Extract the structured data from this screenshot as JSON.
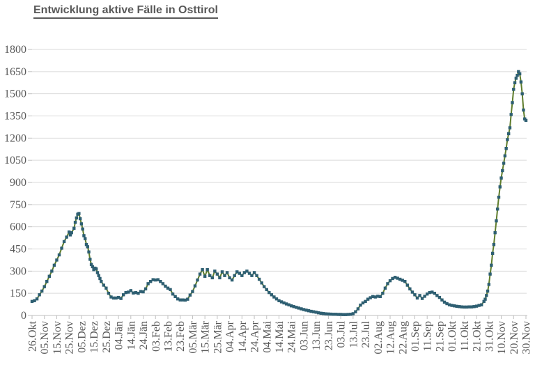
{
  "title": "Entwicklung aktive Fälle in Osttirol",
  "colors": {
    "line": "#5f7d2c",
    "marker": "#2e5f72",
    "grid": "#d9d9d9",
    "axis": "#bfbfbf",
    "tick_text": "#595959",
    "title_text": "#595959",
    "background": "#ffffff"
  },
  "chart_data": {
    "type": "line",
    "title": "Entwicklung aktive Fälle in Osttirol",
    "xlabel": "",
    "ylabel": "",
    "grid": "horizontal",
    "legend": "none",
    "ylim": [
      0,
      1800
    ],
    "y_tick_step": 150,
    "y_tick_labels": [
      "0",
      "150",
      "300",
      "450",
      "600",
      "750",
      "900",
      "1050",
      "1200",
      "1350",
      "1500",
      "1650",
      "1800"
    ],
    "x_range_days": [
      0,
      400
    ],
    "x_tick_interval_days": 10,
    "x_tick_labels": [
      "26.Okt",
      "05.Nov",
      "15.Nov",
      "25.Nov",
      "05.Dez",
      "15.Dez",
      "25.Dez",
      "04.Jän",
      "14.Jän",
      "24.Jän",
      "03.Feb",
      "13.Feb",
      "23.Feb",
      "05.Mär",
      "15.Mär",
      "25.Mär",
      "04.Apr",
      "14.Apr",
      "24.Apr",
      "04.Mai",
      "14.Mai",
      "24.Mai",
      "03.Jun",
      "13.Jun",
      "23.Jun",
      "03.Jul",
      "13.Jul",
      "23.Jul",
      "02.Aug",
      "12.Aug",
      "22.Aug",
      "01.Sep",
      "11.Sep",
      "21.Sep",
      "01.Okt",
      "11.Okt",
      "21.Okt",
      "31.Okt",
      "10.Nov",
      "20.Nov",
      "30.Nov"
    ],
    "series": [
      {
        "name": "aktive Fälle",
        "marker": "square",
        "points": [
          [
            0,
            95
          ],
          [
            2,
            100
          ],
          [
            4,
            112
          ],
          [
            6,
            140
          ],
          [
            8,
            165
          ],
          [
            10,
            195
          ],
          [
            12,
            230
          ],
          [
            14,
            265
          ],
          [
            16,
            300
          ],
          [
            18,
            340
          ],
          [
            20,
            375
          ],
          [
            22,
            410
          ],
          [
            24,
            455
          ],
          [
            26,
            500
          ],
          [
            28,
            530
          ],
          [
            30,
            565
          ],
          [
            31,
            545
          ],
          [
            32,
            560
          ],
          [
            34,
            590
          ],
          [
            35,
            630
          ],
          [
            36,
            660
          ],
          [
            37,
            685
          ],
          [
            38,
            690
          ],
          [
            39,
            655
          ],
          [
            40,
            620
          ],
          [
            41,
            585
          ],
          [
            42,
            540
          ],
          [
            43,
            520
          ],
          [
            44,
            480
          ],
          [
            45,
            465
          ],
          [
            46,
            430
          ],
          [
            47,
            380
          ],
          [
            48,
            345
          ],
          [
            49,
            330
          ],
          [
            50,
            310
          ],
          [
            51,
            320
          ],
          [
            52,
            315
          ],
          [
            53,
            290
          ],
          [
            54,
            270
          ],
          [
            55,
            250
          ],
          [
            56,
            230
          ],
          [
            58,
            205
          ],
          [
            60,
            185
          ],
          [
            62,
            150
          ],
          [
            64,
            125
          ],
          [
            66,
            118
          ],
          [
            68,
            118
          ],
          [
            70,
            122
          ],
          [
            72,
            115
          ],
          [
            74,
            140
          ],
          [
            76,
            155
          ],
          [
            78,
            158
          ],
          [
            80,
            168
          ],
          [
            82,
            152
          ],
          [
            84,
            155
          ],
          [
            86,
            150
          ],
          [
            88,
            162
          ],
          [
            90,
            160
          ],
          [
            92,
            180
          ],
          [
            94,
            215
          ],
          [
            96,
            230
          ],
          [
            98,
            242
          ],
          [
            100,
            240
          ],
          [
            102,
            242
          ],
          [
            104,
            230
          ],
          [
            106,
            215
          ],
          [
            108,
            198
          ],
          [
            110,
            185
          ],
          [
            112,
            175
          ],
          [
            114,
            145
          ],
          [
            116,
            128
          ],
          [
            118,
            112
          ],
          [
            120,
            105
          ],
          [
            122,
            105
          ],
          [
            124,
            104
          ],
          [
            126,
            110
          ],
          [
            128,
            138
          ],
          [
            130,
            162
          ],
          [
            132,
            200
          ],
          [
            134,
            240
          ],
          [
            136,
            280
          ],
          [
            138,
            310
          ],
          [
            140,
            265
          ],
          [
            142,
            310
          ],
          [
            144,
            270
          ],
          [
            146,
            255
          ],
          [
            148,
            300
          ],
          [
            150,
            280
          ],
          [
            152,
            255
          ],
          [
            154,
            295
          ],
          [
            156,
            270
          ],
          [
            158,
            290
          ],
          [
            160,
            255
          ],
          [
            162,
            240
          ],
          [
            164,
            270
          ],
          [
            166,
            295
          ],
          [
            168,
            285
          ],
          [
            170,
            270
          ],
          [
            172,
            290
          ],
          [
            174,
            300
          ],
          [
            176,
            285
          ],
          [
            178,
            270
          ],
          [
            180,
            290
          ],
          [
            182,
            270
          ],
          [
            184,
            245
          ],
          [
            186,
            220
          ],
          [
            188,
            195
          ],
          [
            190,
            175
          ],
          [
            192,
            155
          ],
          [
            194,
            140
          ],
          [
            196,
            125
          ],
          [
            198,
            112
          ],
          [
            200,
            100
          ],
          [
            202,
            92
          ],
          [
            204,
            85
          ],
          [
            206,
            78
          ],
          [
            208,
            72
          ],
          [
            210,
            65
          ],
          [
            212,
            60
          ],
          [
            214,
            55
          ],
          [
            216,
            50
          ],
          [
            218,
            45
          ],
          [
            220,
            40
          ],
          [
            222,
            36
          ],
          [
            224,
            32
          ],
          [
            226,
            28
          ],
          [
            228,
            25
          ],
          [
            230,
            22
          ],
          [
            232,
            18
          ],
          [
            234,
            15
          ],
          [
            236,
            13
          ],
          [
            238,
            11
          ],
          [
            240,
            10
          ],
          [
            242,
            9
          ],
          [
            244,
            8
          ],
          [
            246,
            8
          ],
          [
            248,
            7
          ],
          [
            250,
            7
          ],
          [
            252,
            6
          ],
          [
            254,
            6
          ],
          [
            256,
            7
          ],
          [
            258,
            8
          ],
          [
            260,
            12
          ],
          [
            262,
            25
          ],
          [
            264,
            45
          ],
          [
            266,
            70
          ],
          [
            268,
            85
          ],
          [
            270,
            95
          ],
          [
            272,
            110
          ],
          [
            274,
            120
          ],
          [
            276,
            128
          ],
          [
            278,
            125
          ],
          [
            280,
            130
          ],
          [
            282,
            128
          ],
          [
            284,
            150
          ],
          [
            286,
            185
          ],
          [
            288,
            215
          ],
          [
            290,
            235
          ],
          [
            292,
            250
          ],
          [
            294,
            258
          ],
          [
            296,
            252
          ],
          [
            298,
            245
          ],
          [
            300,
            238
          ],
          [
            302,
            230
          ],
          [
            304,
            205
          ],
          [
            306,
            180
          ],
          [
            308,
            158
          ],
          [
            310,
            140
          ],
          [
            312,
            118
          ],
          [
            314,
            135
          ],
          [
            316,
            115
          ],
          [
            318,
            130
          ],
          [
            320,
            145
          ],
          [
            322,
            155
          ],
          [
            324,
            158
          ],
          [
            326,
            150
          ],
          [
            328,
            135
          ],
          [
            330,
            122
          ],
          [
            332,
            105
          ],
          [
            334,
            90
          ],
          [
            336,
            80
          ],
          [
            338,
            72
          ],
          [
            340,
            68
          ],
          [
            342,
            65
          ],
          [
            344,
            62
          ],
          [
            346,
            60
          ],
          [
            348,
            58
          ],
          [
            350,
            57
          ],
          [
            352,
            57
          ],
          [
            354,
            58
          ],
          [
            356,
            58
          ],
          [
            358,
            60
          ],
          [
            360,
            63
          ],
          [
            362,
            68
          ],
          [
            364,
            72
          ],
          [
            366,
            95
          ],
          [
            367,
            110
          ],
          [
            368,
            135
          ],
          [
            369,
            165
          ],
          [
            370,
            210
          ],
          [
            371,
            280
          ],
          [
            372,
            340
          ],
          [
            373,
            420
          ],
          [
            374,
            480
          ],
          [
            375,
            560
          ],
          [
            376,
            640
          ],
          [
            377,
            720
          ],
          [
            378,
            800
          ],
          [
            379,
            870
          ],
          [
            380,
            930
          ],
          [
            381,
            980
          ],
          [
            382,
            1030
          ],
          [
            383,
            1080
          ],
          [
            384,
            1130
          ],
          [
            385,
            1190
          ],
          [
            386,
            1230
          ],
          [
            387,
            1270
          ],
          [
            388,
            1360
          ],
          [
            389,
            1440
          ],
          [
            390,
            1530
          ],
          [
            391,
            1575
          ],
          [
            392,
            1605
          ],
          [
            393,
            1625
          ],
          [
            394,
            1650
          ],
          [
            395,
            1635
          ],
          [
            396,
            1580
          ],
          [
            397,
            1500
          ],
          [
            398,
            1390
          ],
          [
            399,
            1330
          ],
          [
            400,
            1320
          ]
        ]
      }
    ]
  }
}
